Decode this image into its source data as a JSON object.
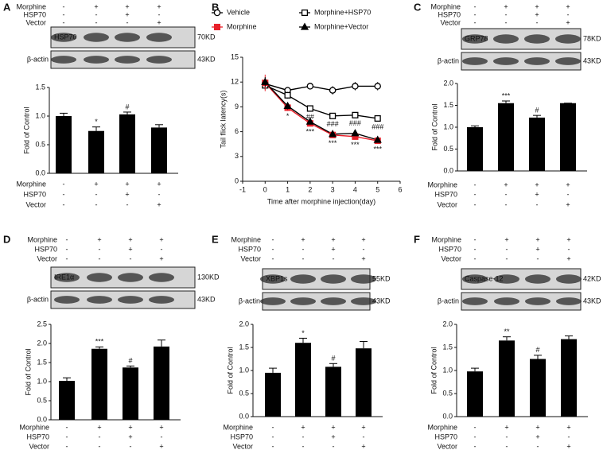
{
  "chart_data": [
    {
      "type": "bar",
      "panel": "A",
      "conditions": [
        {
          "name": "Morphine",
          "signs": [
            "-",
            "+",
            "+",
            "+"
          ]
        },
        {
          "name": "HSP70",
          "signs": [
            "-",
            "-",
            "+",
            "-"
          ]
        },
        {
          "name": "Vector",
          "signs": [
            "-",
            "-",
            "-",
            "+"
          ]
        }
      ],
      "blots": [
        {
          "protein": "HSP70",
          "size": "70KD"
        },
        {
          "protein": "β-actin",
          "size": "43KD"
        }
      ],
      "ylabel": "Fold of Control",
      "values": [
        1.0,
        0.74,
        1.03,
        0.8
      ],
      "errors": [
        0.05,
        0.07,
        0.04,
        0.05
      ],
      "annotations": [
        null,
        "*",
        "#",
        null
      ],
      "color": "#000000",
      "ylim": [
        0,
        1.5
      ],
      "yticks": [
        {
          "value": 0,
          "label": "0.0"
        },
        0.5,
        {
          "value": 1,
          "label": "1.0"
        },
        1.5
      ]
    },
    {
      "type": "line",
      "panel": "B",
      "xlabel": "Time after morphine injection(day)",
      "ylabel": "Tail flick latency(s)",
      "x": [
        0,
        1,
        2,
        3,
        4,
        5
      ],
      "series": [
        {
          "name": "Vehicle",
          "color": "#000000",
          "marker": "circle-open",
          "values": [
            11.8,
            11.0,
            11.5,
            11.0,
            11.5,
            11.5
          ],
          "errors": [
            0.5,
            0.4,
            0.4,
            0.5,
            0.5,
            0.5
          ],
          "annotations": [
            null,
            null,
            null,
            null,
            null,
            null
          ]
        },
        {
          "name": "Morphine+HSP70",
          "color": "#000000",
          "marker": "square-open",
          "values": [
            11.6,
            10.4,
            8.8,
            7.9,
            8.0,
            7.6
          ],
          "errors": [
            0.5,
            0.4,
            0.3,
            0.2,
            0.2,
            0.2
          ],
          "annotations": [
            null,
            null,
            "##",
            "###",
            "###",
            "###"
          ]
        },
        {
          "name": "Morphine",
          "color": "#e8202a",
          "marker": "square-filled",
          "values": [
            11.9,
            8.9,
            7.0,
            5.6,
            5.4,
            4.9
          ],
          "errors": [
            1.0,
            0.4,
            0.3,
            0.2,
            0.2,
            0.2
          ],
          "annotations": [
            null,
            "*",
            "***",
            "***",
            "***",
            "***"
          ]
        },
        {
          "name": "Morphine+Vector",
          "color": "#000000",
          "marker": "triangle-filled",
          "values": [
            12.0,
            9.1,
            7.2,
            5.7,
            5.8,
            5.0
          ],
          "errors": [
            0.6,
            0.4,
            0.3,
            0.2,
            0.2,
            0.2
          ],
          "annotations": [
            null,
            null,
            null,
            null,
            null,
            null
          ]
        }
      ],
      "xlim": [
        -1,
        6
      ],
      "xticks": [
        -1,
        0,
        1,
        2,
        3,
        4,
        5,
        6
      ],
      "ylim": [
        0,
        15
      ],
      "yticks": [
        0,
        3,
        6,
        9,
        12,
        15
      ]
    },
    {
      "type": "bar",
      "panel": "C",
      "conditions": [
        {
          "name": "Morphine",
          "signs": [
            "-",
            "+",
            "+",
            "+"
          ]
        },
        {
          "name": "HSP70",
          "signs": [
            "-",
            "-",
            "+",
            "-"
          ]
        },
        {
          "name": "Vector",
          "signs": [
            "-",
            "-",
            "-",
            "+"
          ]
        }
      ],
      "blots": [
        {
          "protein": "GRP78",
          "size": "78KD"
        },
        {
          "protein": "β-actin",
          "size": "43KD"
        }
      ],
      "ylabel": "Fold of Control",
      "values": [
        1.0,
        1.55,
        1.22,
        1.55
      ],
      "errors": [
        0.03,
        0.05,
        0.05,
        0
      ],
      "annotations": [
        null,
        "***",
        "#",
        null
      ],
      "color": "#000000",
      "ylim": [
        0,
        2
      ],
      "yticks": [
        {
          "value": 0,
          "label": "0.0"
        },
        0.5,
        {
          "value": 1,
          "label": "1.0"
        },
        1.5,
        {
          "value": 2,
          "label": "2.0"
        }
      ]
    },
    {
      "type": "bar",
      "panel": "D",
      "conditions": [
        {
          "name": "Morphine",
          "signs": [
            "-",
            "+",
            "+",
            "+"
          ]
        },
        {
          "name": "HSP70",
          "signs": [
            "-",
            "-",
            "+",
            "-"
          ]
        },
        {
          "name": "Vector",
          "signs": [
            "-",
            "-",
            "-",
            "+"
          ]
        }
      ],
      "blots": [
        {
          "protein": "IRE1α",
          "size": "130KD"
        },
        {
          "protein": "β-actin",
          "size": "43KD"
        }
      ],
      "ylabel": "Fold of Control",
      "values": [
        1.02,
        1.86,
        1.37,
        1.92
      ],
      "errors": [
        0.08,
        0.05,
        0.04,
        0.17
      ],
      "annotations": [
        null,
        "***",
        "#",
        null
      ],
      "color": "#000000",
      "ylim": [
        0,
        2.5
      ],
      "yticks": [
        {
          "value": 0,
          "label": "0.0"
        },
        0.5,
        {
          "value": 1,
          "label": "1.0"
        },
        1.5,
        {
          "value": 2,
          "label": "2.0"
        },
        2.5
      ]
    },
    {
      "type": "bar",
      "panel": "E",
      "conditions": [
        {
          "name": "Morphine",
          "signs": [
            "-",
            "+",
            "+",
            "+"
          ]
        },
        {
          "name": "HSP70",
          "signs": [
            "-",
            "-",
            "+",
            "-"
          ]
        },
        {
          "name": "Vector",
          "signs": [
            "-",
            "-",
            "-",
            "+"
          ]
        }
      ],
      "blots": [
        {
          "protein": "XBP1s",
          "size": "55KD"
        },
        {
          "protein": "β-actin",
          "size": "43KD"
        }
      ],
      "ylabel": "Fold of Control",
      "values": [
        0.95,
        1.6,
        1.08,
        1.48
      ],
      "errors": [
        0.1,
        0.1,
        0.07,
        0.15
      ],
      "annotations": [
        null,
        "*",
        "#",
        null
      ],
      "color": "#000000",
      "ylim": [
        0,
        2
      ],
      "yticks": [
        {
          "value": 0,
          "label": "0.0"
        },
        0.5,
        {
          "value": 1,
          "label": "1.0"
        },
        1.5,
        {
          "value": 2,
          "label": "2.0"
        }
      ]
    },
    {
      "type": "bar",
      "panel": "F",
      "conditions": [
        {
          "name": "Morphine",
          "signs": [
            "-",
            "+",
            "+",
            "+"
          ]
        },
        {
          "name": "HSP70",
          "signs": [
            "-",
            "-",
            "+",
            "-"
          ]
        },
        {
          "name": "Vector",
          "signs": [
            "-",
            "-",
            "-",
            "+"
          ]
        }
      ],
      "blots": [
        {
          "protein": "Caspase-12",
          "size": "42KD"
        },
        {
          "protein": "β-actin",
          "size": "43KD"
        }
      ],
      "ylabel": "Fold of Control",
      "values": [
        0.98,
        1.65,
        1.25,
        1.68
      ],
      "errors": [
        0.07,
        0.08,
        0.08,
        0.07
      ],
      "annotations": [
        null,
        "**",
        "#",
        null
      ],
      "color": "#000000",
      "ylim": [
        0,
        2
      ],
      "yticks": [
        {
          "value": 0,
          "label": "0.0"
        },
        0.5,
        {
          "value": 1,
          "label": "1.0"
        },
        1.5,
        {
          "value": 2,
          "label": "2.0"
        }
      ]
    }
  ]
}
